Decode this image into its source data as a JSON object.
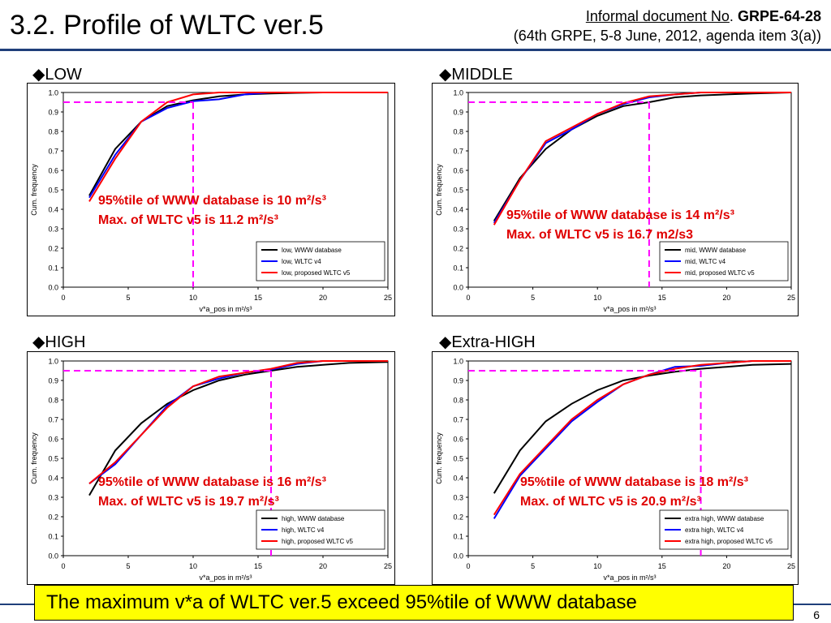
{
  "header": {
    "title": "3.2. Profile of WLTC ver.5",
    "doc_prefix": "Informal document No",
    "doc_dot": ".",
    "doc_id": "GRPE-64-28",
    "doc_meta": "(64th  GRPE,  5-8 June, 2012, agenda item 3(a))"
  },
  "banner": "The maximum v*a of WLTC ver.5 exceed 95%tile of WWW database",
  "page_number": "6",
  "colors": {
    "www": "#000000",
    "v4": "#0000ff",
    "v5": "#ff0000",
    "guide": "#ff00ff",
    "note": "#e00000",
    "banner_bg": "#ffff00",
    "rule": "#1f3f7a"
  },
  "chart_data": [
    {
      "type": "line",
      "panel_label": "◆LOW",
      "xlabel": "v*a_pos in m²/s³",
      "ylabel": "Cum. frequency",
      "xlim": [
        0,
        25
      ],
      "ylim": [
        0,
        1
      ],
      "x_ticks": [
        "0",
        "5",
        "10",
        "15",
        "20",
        "25"
      ],
      "y_ticks": [
        "0.0",
        "0.1",
        "0.2",
        "0.3",
        "0.4",
        "0.5",
        "0.6",
        "0.7",
        "0.8",
        "0.9",
        "1.0"
      ],
      "legend_position": "bottom-right",
      "guide": {
        "x": 10,
        "y": 0.95
      },
      "note_line1": "95%tile of WWW database is 10 m²/s³",
      "note_line2": "Max. of WLTC v5 is 11.2 m²/s³",
      "series": [
        {
          "name": "low, WWW database",
          "color": "#000000",
          "x": [
            2,
            4,
            6,
            8,
            10,
            12,
            14,
            16,
            18,
            20,
            22,
            25
          ],
          "y": [
            0.47,
            0.71,
            0.85,
            0.93,
            0.96,
            0.98,
            0.99,
            0.995,
            0.998,
            1.0,
            1.0,
            1.0
          ]
        },
        {
          "name": "low, WLTC v4",
          "color": "#0000ff",
          "x": [
            2,
            4,
            6,
            8,
            10,
            12,
            14,
            16,
            20,
            25
          ],
          "y": [
            0.46,
            0.68,
            0.85,
            0.92,
            0.955,
            0.965,
            0.99,
            1.0,
            1.0,
            1.0
          ]
        },
        {
          "name": "low, proposed WLTC v5",
          "color": "#ff0000",
          "x": [
            2,
            4,
            6,
            8,
            10,
            12,
            14,
            16,
            20,
            25
          ],
          "y": [
            0.44,
            0.66,
            0.85,
            0.95,
            0.99,
            1.0,
            1.0,
            1.0,
            1.0,
            1.0
          ]
        }
      ]
    },
    {
      "type": "line",
      "panel_label": "◆MIDDLE",
      "xlabel": "v*a_pos in m²/s³",
      "ylabel": "Cum. frequency",
      "xlim": [
        0,
        25
      ],
      "ylim": [
        0,
        1
      ],
      "x_ticks": [
        "0",
        "5",
        "10",
        "15",
        "20",
        "25"
      ],
      "y_ticks": [
        "0.0",
        "0.1",
        "0.2",
        "0.3",
        "0.4",
        "0.5",
        "0.6",
        "0.7",
        "0.8",
        "0.9",
        "1.0"
      ],
      "legend_position": "bottom-right",
      "guide": {
        "x": 14,
        "y": 0.95
      },
      "note_line1": "95%tile of WWW database is 14 m²/s³",
      "note_line2": "Max. of WLTC v5 is 16.7 m2/s3",
      "series": [
        {
          "name": "mid, WWW database",
          "color": "#000000",
          "x": [
            2,
            4,
            6,
            8,
            10,
            12,
            14,
            16,
            18,
            20,
            22,
            25
          ],
          "y": [
            0.34,
            0.56,
            0.71,
            0.81,
            0.88,
            0.93,
            0.95,
            0.975,
            0.985,
            0.99,
            0.995,
            1.0
          ]
        },
        {
          "name": "mid, WLTC v4",
          "color": "#0000ff",
          "x": [
            2,
            4,
            6,
            8,
            10,
            12,
            14,
            16,
            18,
            20,
            25
          ],
          "y": [
            0.33,
            0.55,
            0.74,
            0.81,
            0.89,
            0.94,
            0.975,
            0.99,
            1.0,
            1.0,
            1.0
          ]
        },
        {
          "name": "mid, proposed WLTC v5",
          "color": "#ff0000",
          "x": [
            2,
            4,
            6,
            8,
            10,
            12,
            14,
            16,
            18,
            20,
            25
          ],
          "y": [
            0.32,
            0.55,
            0.75,
            0.82,
            0.89,
            0.945,
            0.98,
            0.99,
            1.0,
            1.0,
            1.0
          ]
        }
      ]
    },
    {
      "type": "line",
      "panel_label": "◆HIGH",
      "xlabel": "v*a_pos in m²/s³",
      "ylabel": "Cum. frequency",
      "xlim": [
        0,
        25
      ],
      "ylim": [
        0,
        1
      ],
      "x_ticks": [
        "0",
        "5",
        "10",
        "15",
        "20",
        "25"
      ],
      "y_ticks": [
        "0.0",
        "0.1",
        "0.2",
        "0.3",
        "0.4",
        "0.5",
        "0.6",
        "0.7",
        "0.8",
        "0.9",
        "1.0"
      ],
      "legend_position": "bottom-right",
      "guide": {
        "x": 16,
        "y": 0.95
      },
      "note_line1": "95%tile of WWW database is 16 m²/s³",
      "note_line2": "Max. of WLTC v5 is 19.7 m²/s³",
      "series": [
        {
          "name": "high, WWW database",
          "color": "#000000",
          "x": [
            2,
            4,
            6,
            8,
            10,
            12,
            14,
            16,
            18,
            20,
            22,
            25
          ],
          "y": [
            0.31,
            0.54,
            0.68,
            0.78,
            0.85,
            0.9,
            0.93,
            0.95,
            0.97,
            0.98,
            0.99,
            0.995
          ]
        },
        {
          "name": "high, WLTC v4",
          "color": "#0000ff",
          "x": [
            2,
            4,
            6,
            8,
            10,
            12,
            14,
            16,
            18,
            20,
            22,
            25
          ],
          "y": [
            0.37,
            0.47,
            0.62,
            0.77,
            0.87,
            0.91,
            0.94,
            0.955,
            0.985,
            1.0,
            1.0,
            1.0
          ]
        },
        {
          "name": "high, proposed WLTC v5",
          "color": "#ff0000",
          "x": [
            2,
            4,
            6,
            8,
            10,
            12,
            14,
            16,
            18,
            20,
            22,
            25
          ],
          "y": [
            0.37,
            0.48,
            0.62,
            0.76,
            0.87,
            0.92,
            0.94,
            0.96,
            0.99,
            1.0,
            1.0,
            1.0
          ]
        }
      ]
    },
    {
      "type": "line",
      "panel_label": "◆Extra-HIGH",
      "xlabel": "v*a_pos in m²/s³",
      "ylabel": "Cum. frequency",
      "xlim": [
        0,
        25
      ],
      "ylim": [
        0,
        1
      ],
      "x_ticks": [
        "0",
        "5",
        "10",
        "15",
        "20",
        "25"
      ],
      "y_ticks": [
        "0.0",
        "0.1",
        "0.2",
        "0.3",
        "0.4",
        "0.5",
        "0.6",
        "0.7",
        "0.8",
        "0.9",
        "1.0"
      ],
      "legend_position": "bottom-right",
      "guide": {
        "x": 18,
        "y": 0.95
      },
      "note_line1": "95%tile of WWW database is 18 m²/s³",
      "note_line2": "Max. of WLTC v5 is 20.9 m²/s³",
      "series": [
        {
          "name": "extra high, WWW database",
          "color": "#000000",
          "x": [
            2,
            4,
            6,
            8,
            10,
            12,
            14,
            16,
            18,
            20,
            22,
            25
          ],
          "y": [
            0.32,
            0.54,
            0.69,
            0.78,
            0.85,
            0.9,
            0.925,
            0.945,
            0.96,
            0.97,
            0.98,
            0.985
          ]
        },
        {
          "name": "extra high, WLTC v4",
          "color": "#0000ff",
          "x": [
            2,
            4,
            6,
            8,
            10,
            12,
            14,
            16,
            18,
            20,
            22,
            25
          ],
          "y": [
            0.19,
            0.41,
            0.55,
            0.69,
            0.79,
            0.88,
            0.93,
            0.97,
            0.975,
            0.99,
            1.0,
            1.0
          ]
        },
        {
          "name": "extra high, proposed WLTC v5",
          "color": "#ff0000",
          "x": [
            2,
            4,
            6,
            8,
            10,
            12,
            14,
            16,
            18,
            20,
            22,
            25
          ],
          "y": [
            0.21,
            0.42,
            0.56,
            0.7,
            0.8,
            0.88,
            0.93,
            0.96,
            0.98,
            0.99,
            1.0,
            1.0
          ]
        }
      ]
    }
  ]
}
